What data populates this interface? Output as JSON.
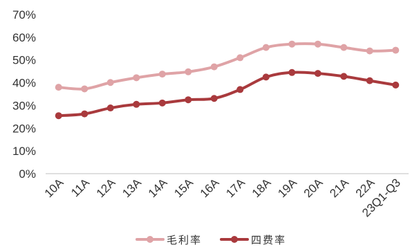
{
  "chart_data": {
    "type": "line",
    "categories": [
      "10A",
      "11A",
      "12A",
      "13A",
      "14A",
      "15A",
      "16A",
      "17A",
      "18A",
      "19A",
      "20A",
      "21A",
      "22A",
      "23Q1-Q3"
    ],
    "series": [
      {
        "name": "毛利率",
        "color": "#dfa3a6",
        "values": [
          38.0,
          37.3,
          40.1,
          42.2,
          43.8,
          44.8,
          47.0,
          51.0,
          55.5,
          57.0,
          57.0,
          55.5,
          54.0,
          54.3
        ]
      },
      {
        "name": "四费率",
        "color": "#a93a3d",
        "values": [
          25.5,
          26.3,
          28.9,
          30.5,
          31.1,
          32.5,
          33.1,
          37.0,
          42.5,
          44.5,
          44.1,
          42.8,
          40.9,
          39.0
        ]
      }
    ],
    "yticks": [
      "0%",
      "10%",
      "20%",
      "30%",
      "40%",
      "50%",
      "60%",
      "70%"
    ],
    "ylim": [
      0,
      70
    ],
    "grid": false,
    "legend": "bottom",
    "title": "",
    "xlabel": "",
    "ylabel": ""
  }
}
